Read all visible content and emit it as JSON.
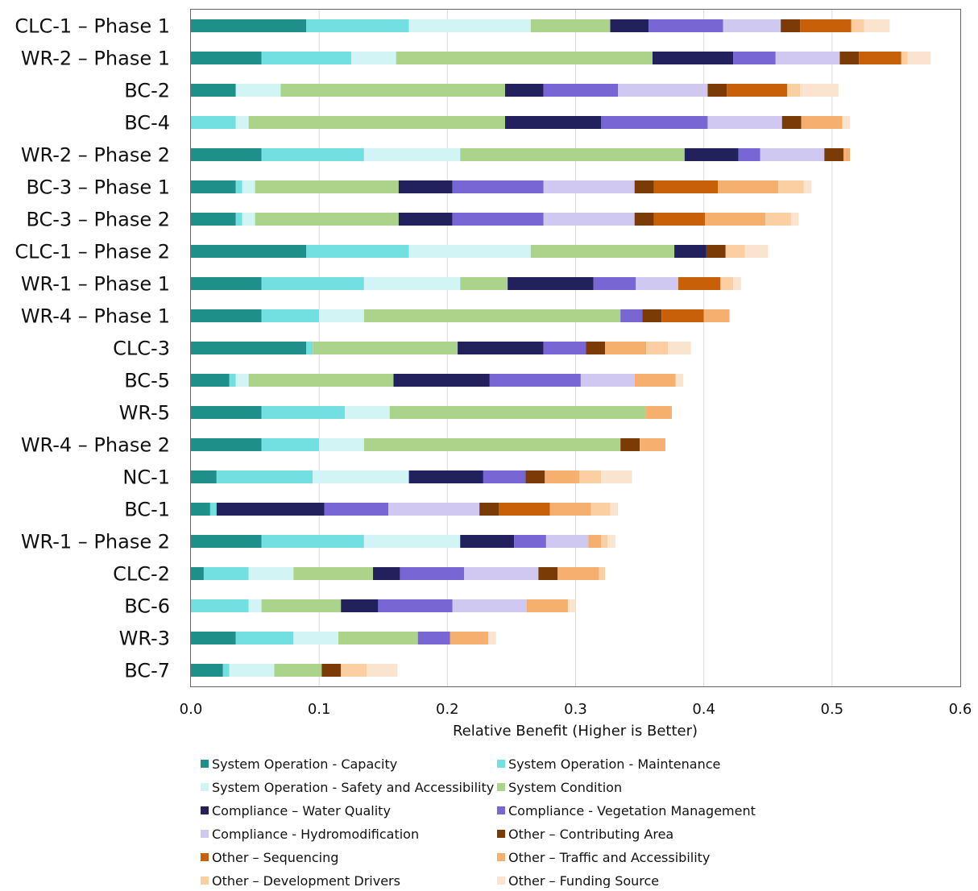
{
  "chart_data": {
    "type": "bar",
    "orientation": "horizontal",
    "stacked": true,
    "title": "",
    "xlabel": "Relative Benefit (Higher is Better)",
    "ylabel": "",
    "xlim": [
      0,
      0.6
    ],
    "xticks": [
      "0.0",
      "0.1",
      "0.2",
      "0.3",
      "0.4",
      "0.5",
      "0.6"
    ],
    "grid": "vertical",
    "legend": "bottom",
    "categories": [
      "CLC-1 – Phase 1",
      "WR-2 – Phase 1",
      "BC-2",
      "BC-4",
      "WR-2 – Phase 2",
      "BC-3 – Phase 1",
      "BC-3 – Phase 2",
      "CLC-1 – Phase 2",
      "WR-1 – Phase 1",
      "WR-4 – Phase 1",
      "CLC-3",
      "BC-5",
      "WR-5",
      "WR-4 – Phase 2",
      "NC-1",
      "BC-1",
      "WR-1 – Phase 2",
      "CLC-2",
      "BC-6",
      "WR-3",
      "BC-7"
    ],
    "series": [
      {
        "name": "System Operation - Capacity",
        "color": "#1f8f8a",
        "values": [
          0.09,
          0.055,
          0.035,
          0,
          0.055,
          0.035,
          0.035,
          0.09,
          0.055,
          0.055,
          0.09,
          0.03,
          0.055,
          0.055,
          0.02,
          0.015,
          0.055,
          0.01,
          0,
          0.035,
          0.025
        ]
      },
      {
        "name": "System Operation - Maintenance",
        "color": "#72e0e0",
        "values": [
          0.08,
          0.07,
          0,
          0.035,
          0.08,
          0.005,
          0.005,
          0.08,
          0.08,
          0.045,
          0.005,
          0.005,
          0.065,
          0.045,
          0.075,
          0.005,
          0.08,
          0.035,
          0.045,
          0.045,
          0.005
        ]
      },
      {
        "name": "System Operation - Safety and Accessibility",
        "color": "#d2f4f4",
        "values": [
          0.095,
          0.035,
          0.035,
          0.01,
          0.075,
          0.01,
          0.01,
          0.095,
          0.075,
          0.035,
          0,
          0.01,
          0.035,
          0.035,
          0.075,
          0,
          0.075,
          0.035,
          0.01,
          0.035,
          0.035
        ]
      },
      {
        "name": "System Condition",
        "color": "#acd38a",
        "values": [
          0.062,
          0.2,
          0.175,
          0.2,
          0.175,
          0.112,
          0.112,
          0.112,
          0.037,
          0.2,
          0.113,
          0.113,
          0.2,
          0.2,
          0,
          0,
          0,
          0.062,
          0.062,
          0.062,
          0.037
        ]
      },
      {
        "name": "Compliance – Water Quality",
        "color": "#22215e",
        "values": [
          0.03,
          0.063,
          0.03,
          0.075,
          0.042,
          0.042,
          0.042,
          0.025,
          0.067,
          0,
          0.067,
          0.075,
          0,
          0,
          0.058,
          0.084,
          0.042,
          0.021,
          0.029,
          0,
          0
        ]
      },
      {
        "name": "Compliance - Vegetation Management",
        "color": "#7766d4",
        "values": [
          0.058,
          0.033,
          0.058,
          0.083,
          0.017,
          0.071,
          0.071,
          0,
          0.033,
          0.017,
          0.033,
          0.071,
          0,
          0,
          0.033,
          0.05,
          0.025,
          0.05,
          0.058,
          0.025,
          0
        ]
      },
      {
        "name": "Compliance - Hydromodification",
        "color": "#d0c8f0",
        "values": [
          0.045,
          0.05,
          0.07,
          0.058,
          0.05,
          0.071,
          0.071,
          0,
          0.033,
          0,
          0,
          0.042,
          0,
          0,
          0,
          0.071,
          0.033,
          0.058,
          0.058,
          0,
          0
        ]
      },
      {
        "name": "Other – Contributing Area",
        "color": "#7a3b06",
        "values": [
          0.015,
          0.015,
          0.015,
          0.015,
          0.015,
          0.015,
          0.015,
          0.015,
          0,
          0.015,
          0.015,
          0,
          0,
          0.015,
          0.015,
          0.015,
          0,
          0.015,
          0,
          0,
          0.015
        ]
      },
      {
        "name": "Other – Sequencing",
        "color": "#c8600a",
        "values": [
          0.04,
          0.033,
          0.047,
          0,
          0,
          0.05,
          0.04,
          0,
          0.033,
          0.033,
          0,
          0,
          0,
          0,
          0,
          0.04,
          0,
          0,
          0,
          0,
          0
        ]
      },
      {
        "name": "Other – Traffic and Accessibility",
        "color": "#f5b070",
        "values": [
          0,
          0,
          0,
          0.032,
          0.005,
          0.047,
          0.047,
          0,
          0,
          0.02,
          0.032,
          0.032,
          0.02,
          0.02,
          0.027,
          0.032,
          0.01,
          0.032,
          0.032,
          0.03,
          0
        ]
      },
      {
        "name": "Other – Development Drivers",
        "color": "#fbcfa2",
        "values": [
          0.01,
          0.005,
          0.01,
          0,
          0,
          0.02,
          0.02,
          0.015,
          0.01,
          0,
          0.017,
          0,
          0,
          0,
          0.017,
          0.015,
          0.005,
          0.005,
          0,
          0,
          0.02
        ]
      },
      {
        "name": "Other – Funding Source",
        "color": "#fbe4cf",
        "values": [
          0.02,
          0.018,
          0.03,
          0.006,
          0,
          0.006,
          0.006,
          0.018,
          0.006,
          0,
          0.018,
          0.006,
          0,
          0,
          0.024,
          0.006,
          0.006,
          0,
          0.006,
          0.006,
          0.024
        ]
      }
    ]
  }
}
